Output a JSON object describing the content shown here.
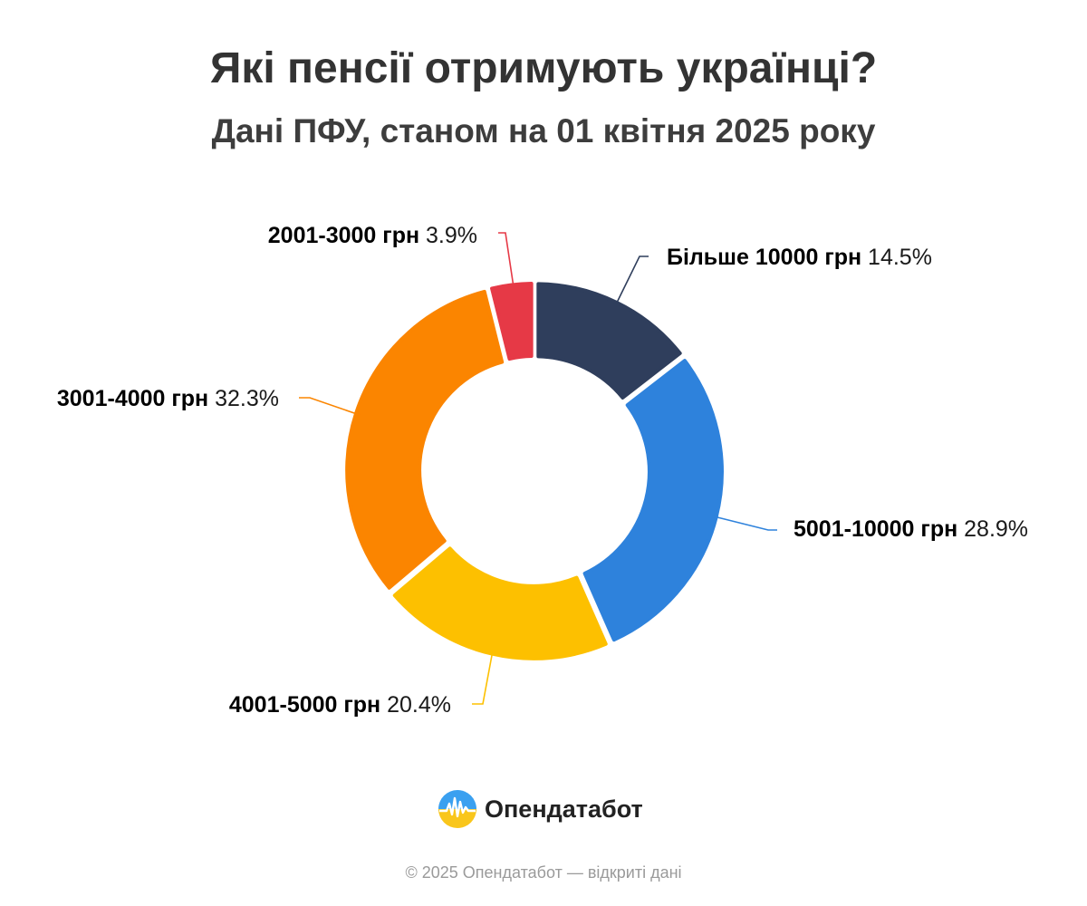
{
  "header": {
    "title": "Які пенсії отримують українці?",
    "subtitle": "Дані ПФУ, станом на 01 квітня 2025 року"
  },
  "chart_data": {
    "type": "pie",
    "donut": true,
    "title": "Які пенсії отримують українці?",
    "subtitle": "Дані ПФУ, станом на 01 квітня 2025 року",
    "unit": "%",
    "slices": [
      {
        "label": "Більше 10000 грн",
        "value": 14.5,
        "value_label": "14.5%",
        "color": "#2f3e5c"
      },
      {
        "label": "5001-10000 грн",
        "value": 28.9,
        "value_label": "28.9%",
        "color": "#2e82dc"
      },
      {
        "label": "4001-5000 грн",
        "value": 20.4,
        "value_label": "20.4%",
        "color": "#fdc000"
      },
      {
        "label": "3001-4000 грн",
        "value": 32.3,
        "value_label": "32.3%",
        "color": "#fb8500"
      },
      {
        "label": "2001-3000 грн",
        "value": 3.9,
        "value_label": "3.9%",
        "color": "#e63946"
      }
    ]
  },
  "brand": {
    "name": "Опендатабот",
    "logo_icon": "opendatabot-logo-icon"
  },
  "footer": {
    "text": "© 2025 Опендатабот — відкриті дані"
  }
}
